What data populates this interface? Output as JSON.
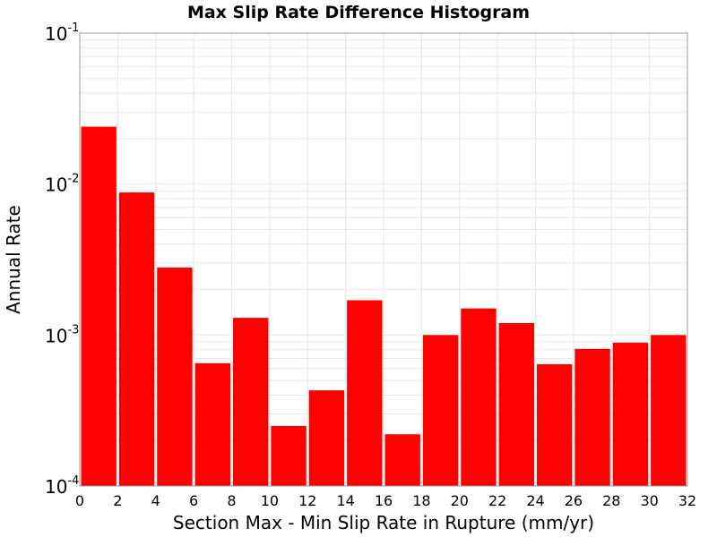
{
  "chart_data": {
    "type": "bar",
    "title": "Max Slip Rate Difference Histogram",
    "xlabel": "Section Max - Min Slip Rate in Rupture (mm/yr)",
    "ylabel": "Annual Rate",
    "x_ticks": [
      "0",
      "2",
      "4",
      "6",
      "8",
      "10",
      "12",
      "14",
      "16",
      "18",
      "20",
      "22",
      "24",
      "26",
      "28",
      "30",
      "32"
    ],
    "xlim": [
      0,
      32
    ],
    "ylim": [
      0.0001,
      0.1
    ],
    "y_scale": "log",
    "y_ticks": [
      {
        "base": "10",
        "exp": "-4",
        "value": 0.0001
      },
      {
        "base": "10",
        "exp": "-3",
        "value": 0.001
      },
      {
        "base": "10",
        "exp": "-2",
        "value": 0.01
      },
      {
        "base": "10",
        "exp": "-1",
        "value": 0.1
      }
    ],
    "bin_width": 2,
    "bins": [
      {
        "x": 1,
        "value": 0.024
      },
      {
        "x": 3,
        "value": 0.0088
      },
      {
        "x": 5,
        "value": 0.0028
      },
      {
        "x": 7,
        "value": 0.00065
      },
      {
        "x": 9,
        "value": 0.0013
      },
      {
        "x": 11,
        "value": 0.00025
      },
      {
        "x": 13,
        "value": 0.00043
      },
      {
        "x": 15,
        "value": 0.0017
      },
      {
        "x": 17,
        "value": 0.00022
      },
      {
        "x": 19,
        "value": 0.001
      },
      {
        "x": 21,
        "value": 0.0015
      },
      {
        "x": 23,
        "value": 0.0012
      },
      {
        "x": 25,
        "value": 0.00064
      },
      {
        "x": 27,
        "value": 0.00081
      },
      {
        "x": 29,
        "value": 0.00089
      },
      {
        "x": 31,
        "value": 0.001
      }
    ],
    "bar_color": "#ff0000",
    "grid": true,
    "grid_color": "#e8e8e8"
  }
}
